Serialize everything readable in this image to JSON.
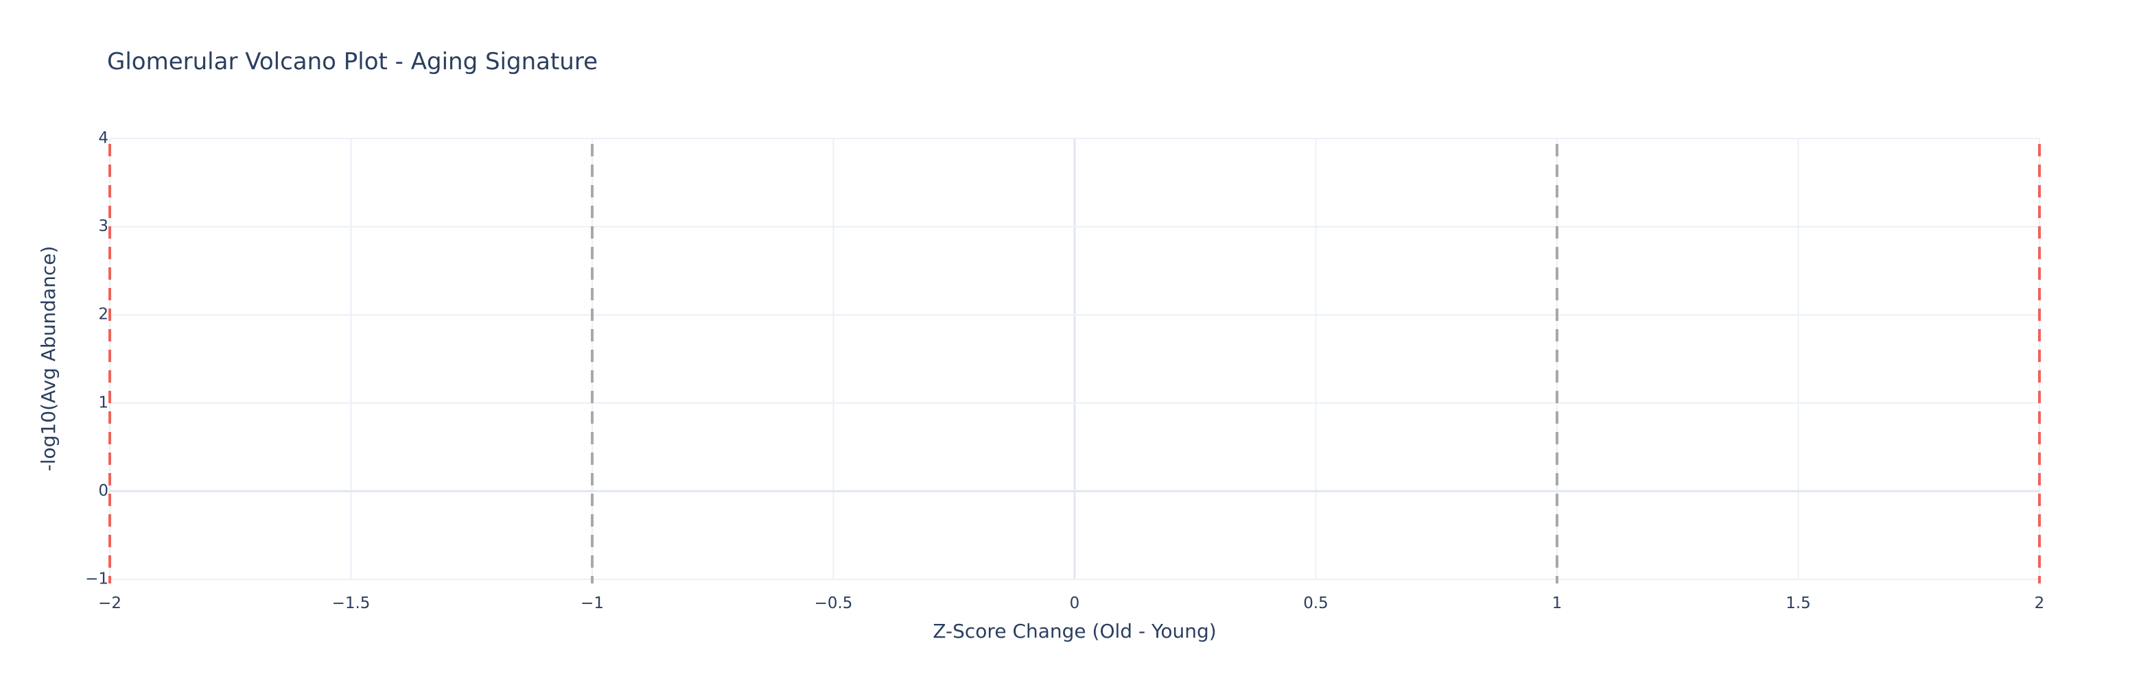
{
  "chart_data": {
    "type": "scatter",
    "title": "Glomerular Volcano Plot - Aging Signature",
    "xlabel": "Z-Score Change (Old - Young)",
    "ylabel": "-log10(Avg Abundance)",
    "xlim": [
      -2,
      2
    ],
    "ylim": [
      -1,
      4
    ],
    "x_ticks": [
      -2,
      -1.5,
      -1,
      -0.5,
      0,
      0.5,
      1,
      1.5,
      2
    ],
    "x_tick_labels": [
      "−2",
      "−1.5",
      "−1",
      "−0.5",
      "0",
      "0.5",
      "1",
      "1.5",
      "2"
    ],
    "y_ticks": [
      -1,
      0,
      1,
      2,
      3,
      4
    ],
    "y_tick_labels": [
      "−1",
      "0",
      "1",
      "2",
      "3",
      "4"
    ],
    "grid": true,
    "series": [],
    "threshold_lines": [
      {
        "axis": "x",
        "value": -2,
        "color": "#f0625a",
        "style": "dashed"
      },
      {
        "axis": "x",
        "value": -1,
        "color": "#a8a8a8",
        "style": "dashed"
      },
      {
        "axis": "x",
        "value": 1,
        "color": "#a8a8a8",
        "style": "dashed"
      },
      {
        "axis": "x",
        "value": 2,
        "color": "#f0625a",
        "style": "dashed"
      }
    ]
  }
}
